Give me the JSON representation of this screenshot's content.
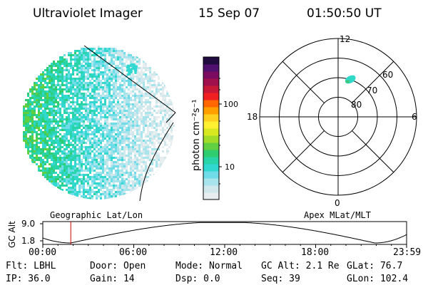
{
  "header": {
    "title": "Ultraviolet Imager",
    "date": "15 Sep 07",
    "time": "01:50:50 UT"
  },
  "globe_label": "Geographic Lat/Lon",
  "polar": {
    "label": "Apex MLat/MLT",
    "mlt_labels": {
      "top": "12",
      "left": "18",
      "right": "6",
      "bottom": "0"
    },
    "lat_labels": [
      "80",
      "70",
      "60"
    ],
    "rings_deg": [
      80,
      70,
      60,
      50
    ],
    "radial_spokes_hours": [
      0,
      3,
      6,
      9,
      12,
      15,
      18,
      21
    ],
    "aurora_spot": {
      "mlat": 70,
      "mlt_hours": 11.5
    }
  },
  "colorbar": {
    "unit": "photon cm⁻²s⁻¹",
    "tick_labels": [
      "100",
      "10"
    ],
    "colors": [
      "#e8eef0",
      "#d0e8ec",
      "#a8e4ec",
      "#70dce8",
      "#30d8d0",
      "#28d4a8",
      "#30cc70",
      "#60d040",
      "#a0dc28",
      "#d8e820",
      "#fff030",
      "#ffd020",
      "#ffa000",
      "#ff6800",
      "#f02020",
      "#c81838",
      "#a0104c",
      "#7c0c60",
      "#501070",
      "#200a40"
    ]
  },
  "altitude_plot": {
    "axis_label": "GC Alt",
    "y_ticks": [
      "9.0",
      "1.8"
    ],
    "x_ticks": [
      "00:00",
      "06:00",
      "12:00",
      "18:00",
      "23:59"
    ],
    "current_time_marker_hours": 1.847,
    "line_color": "#000000",
    "marker_color": "#cc0000"
  },
  "info": {
    "row1": [
      "Flt: LBHL",
      "Door: Open",
      "Mode: Normal",
      "GC Alt: 2.1 Re",
      "GLat:  76.7"
    ],
    "row2": [
      "IP: 36.0",
      "Gain: 14",
      "Dsp:     0.0",
      "Seq: 39",
      "GLon: 102.4"
    ]
  }
}
